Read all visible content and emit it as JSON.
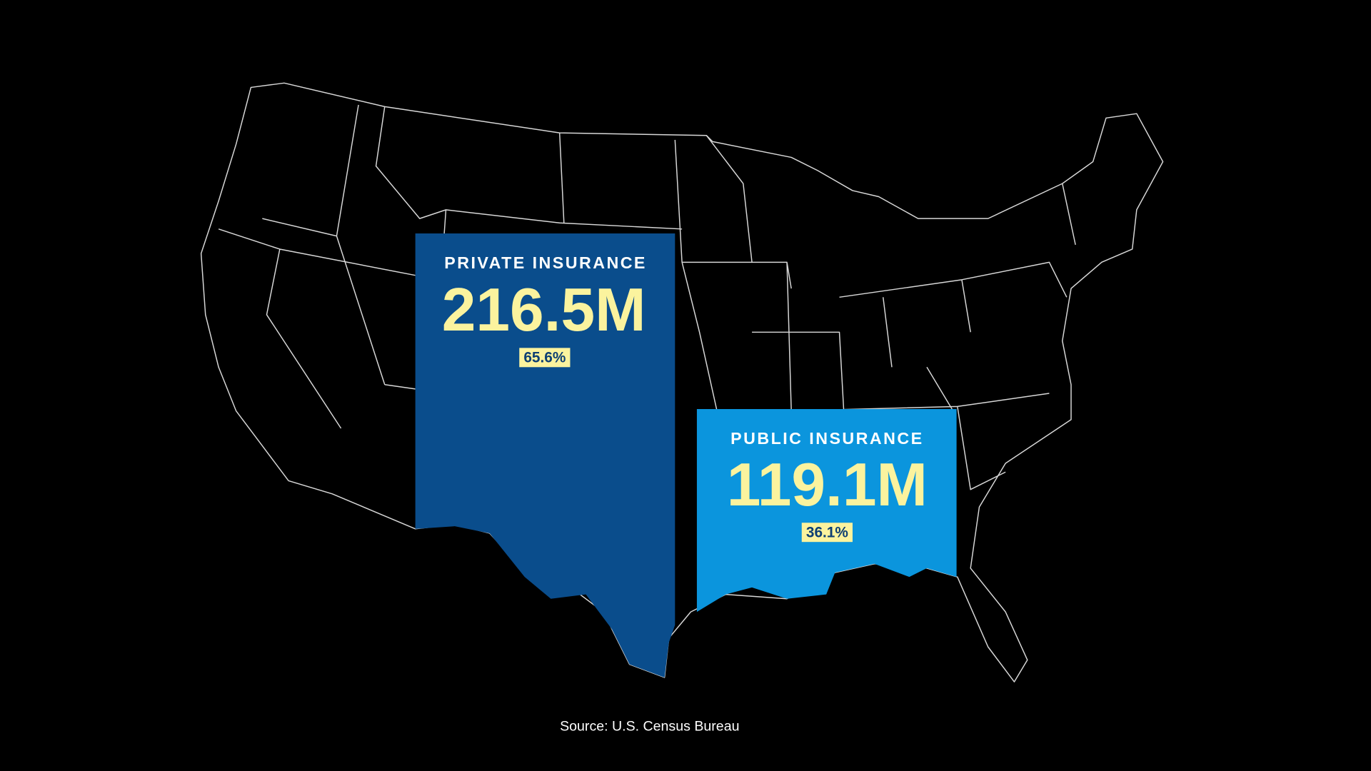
{
  "panels": [
    {
      "label": "PRIVATE INSURANCE",
      "value": "216.5M",
      "share": "65.6%"
    },
    {
      "label": "PUBLIC INSURANCE",
      "value": "119.1M",
      "share": "36.1%"
    }
  ],
  "source": "Source: U.S. Census Bureau"
}
